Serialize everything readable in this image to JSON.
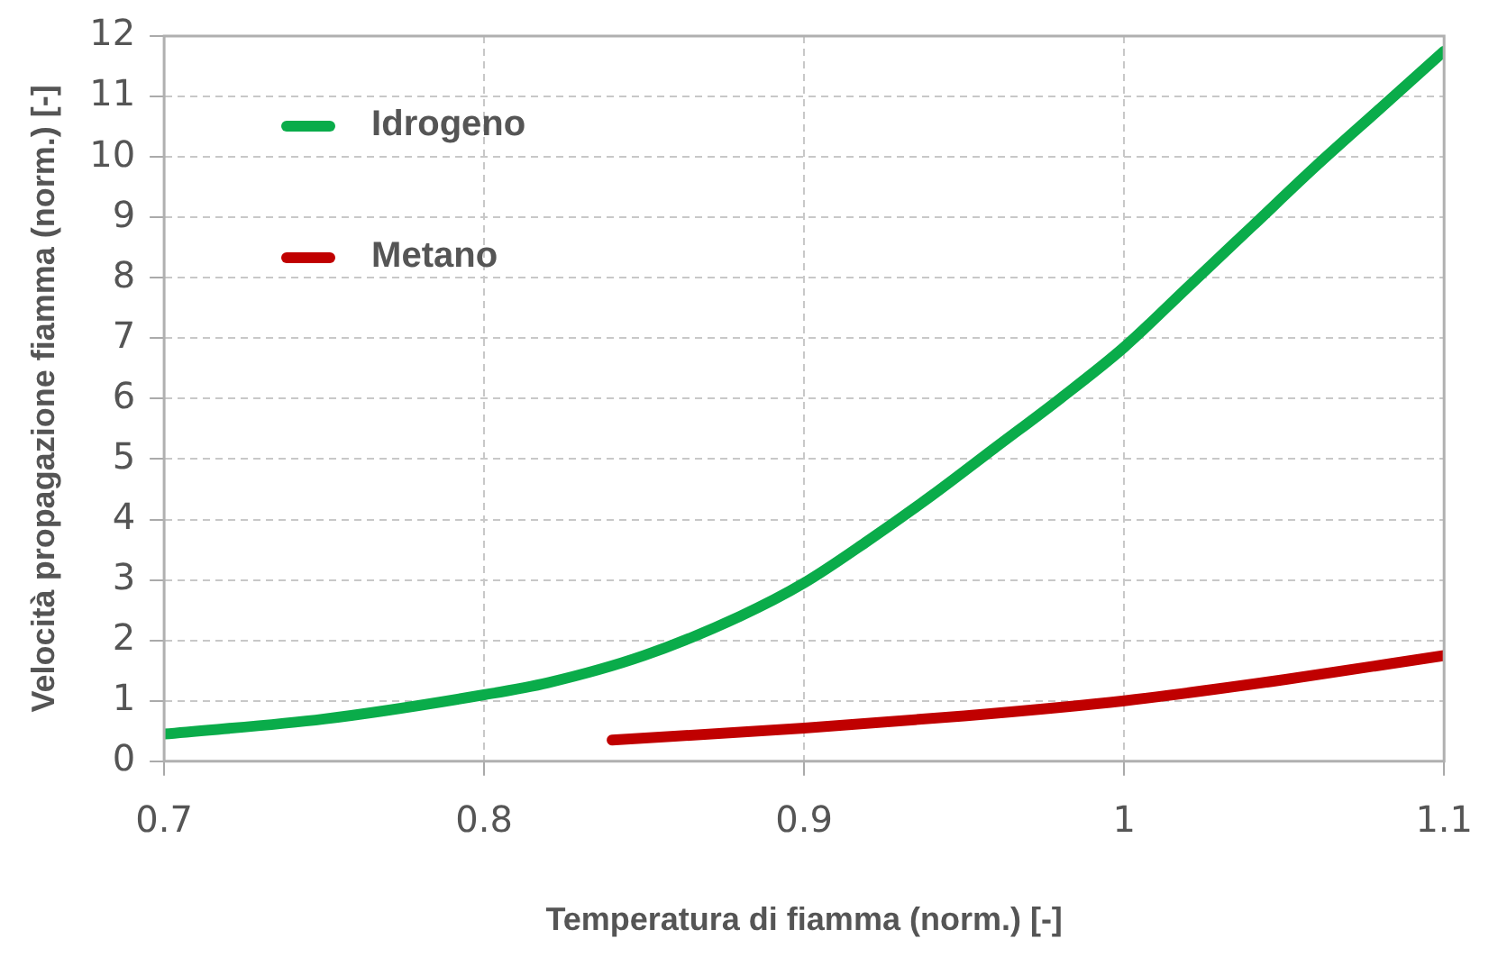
{
  "chart_data": {
    "type": "line",
    "xlabel": "Temperatura di fiamma (norm.) [-]",
    "ylabel": "Velocità propagazione fiamma (norm.) [-]",
    "xlim": [
      0.7,
      1.1
    ],
    "xticks": [
      0.7,
      0.8,
      0.9,
      1,
      1.1
    ],
    "ylim": [
      0,
      12
    ],
    "yticks": [
      0,
      1,
      2,
      3,
      4,
      5,
      6,
      7,
      8,
      9,
      10,
      11,
      12
    ],
    "grid": true,
    "legend": "top left",
    "marker": "none",
    "line_style": "solid",
    "series": [
      {
        "name": "Idrogeno",
        "color": "#0aac4a",
        "x": [
          0.7,
          0.75,
          0.8,
          0.82,
          0.85,
          0.88,
          0.9,
          0.92,
          0.94,
          0.96,
          0.98,
          1.0,
          1.02,
          1.04,
          1.06,
          1.08,
          1.1
        ],
        "values": [
          0.45,
          0.7,
          1.1,
          1.3,
          1.75,
          2.4,
          2.95,
          3.65,
          4.4,
          5.2,
          6.0,
          6.85,
          7.85,
          8.85,
          9.85,
          10.8,
          11.75
        ]
      },
      {
        "name": "Metano",
        "color": "#c00000",
        "x": [
          0.84,
          0.9,
          0.95,
          1.0,
          1.05,
          1.1
        ],
        "values": [
          0.35,
          0.55,
          0.75,
          1.0,
          1.35,
          1.75
        ]
      }
    ]
  }
}
